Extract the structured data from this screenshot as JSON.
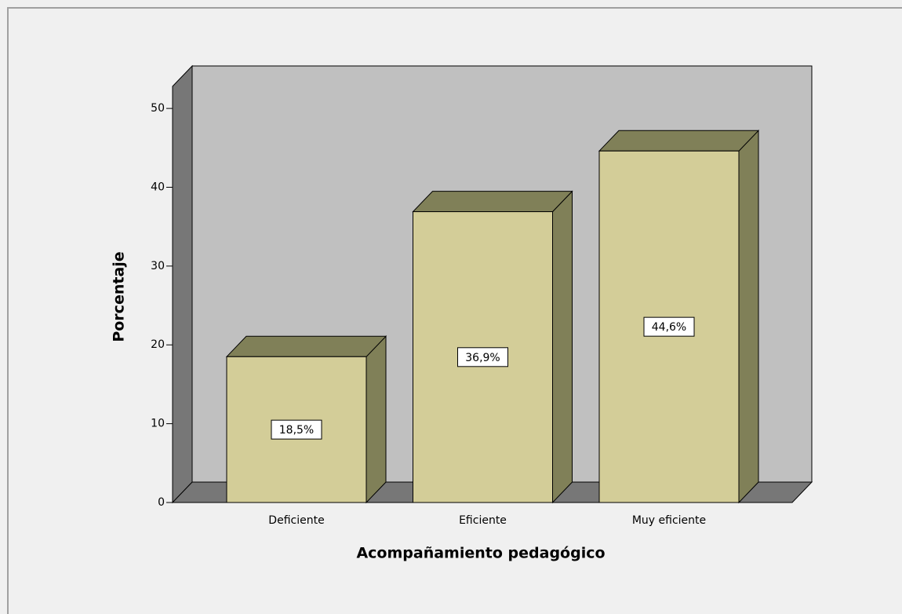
{
  "chart_data": {
    "type": "bar3d",
    "x_label": "Acompañamiento pedagógico",
    "y_label": "Porcentaje",
    "categories": [
      "Deficiente",
      "Eficiente",
      "Muy eficiente"
    ],
    "values": [
      18.5,
      36.9,
      44.6
    ],
    "value_labels": [
      "18,5%",
      "36,9%",
      "44,6%"
    ],
    "color": "#d3cd98",
    "ylim": [
      0,
      52.8
    ],
    "yticks": [
      0,
      10,
      20,
      30,
      40,
      50
    ],
    "grid": false
  }
}
